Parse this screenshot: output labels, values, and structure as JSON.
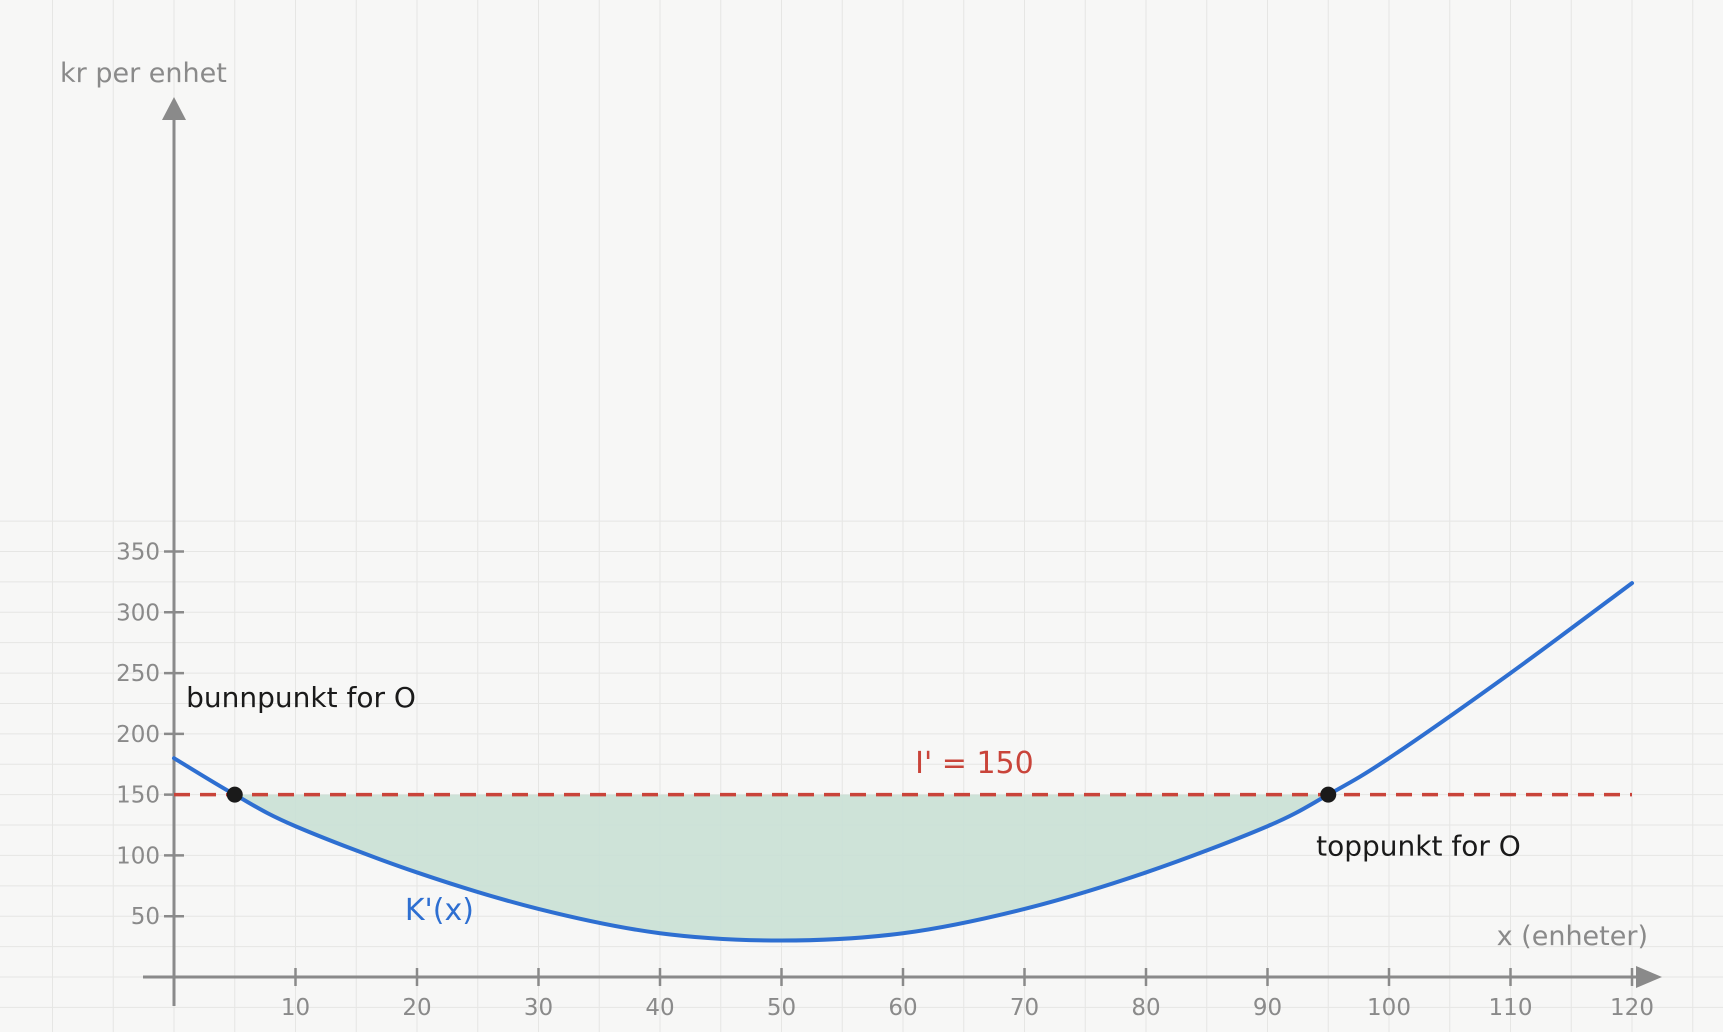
{
  "chart_data": {
    "type": "line",
    "xlabel": "x (enheter)",
    "ylabel": "kr per enhet",
    "xlim": [
      0,
      120
    ],
    "ylim": [
      0,
      350
    ],
    "x_ticks": [
      10,
      20,
      30,
      40,
      50,
      60,
      70,
      80,
      90,
      100,
      110,
      120
    ],
    "y_ticks": [
      50,
      100,
      150,
      200,
      250,
      300,
      350
    ],
    "grid": true,
    "series": [
      {
        "name": "K'(x)",
        "color": "#2e6fd1",
        "x": [
          0,
          5,
          10,
          20,
          30,
          40,
          50,
          60,
          70,
          80,
          90,
          95,
          100,
          110,
          120
        ],
        "y": [
          180,
          150,
          124,
          86,
          56,
          36,
          30,
          36,
          56,
          86,
          124,
          150,
          180,
          250,
          324
        ]
      },
      {
        "name": "I' = 150",
        "color": "#c9443a",
        "style": "dashed",
        "x": [
          0,
          120
        ],
        "y": [
          150,
          150
        ]
      }
    ],
    "shaded_region": {
      "between": [
        "K'(x)",
        "I' = 150"
      ],
      "x_range": [
        5,
        95
      ],
      "color": "#c9e0d5"
    },
    "points": [
      {
        "x": 5,
        "y": 150
      },
      {
        "x": 95,
        "y": 150
      }
    ],
    "annotations": [
      {
        "text": "bunnpunkt for O",
        "x": 1,
        "y": 222
      },
      {
        "text": "toppunkt for O",
        "x": 94,
        "y": 100
      },
      {
        "text": "K'(x)",
        "x": 19,
        "y": 47,
        "color": "#2e6fd1"
      },
      {
        "text": "I' = 150",
        "x": 61,
        "y": 168,
        "color": "#c9443a"
      }
    ]
  }
}
